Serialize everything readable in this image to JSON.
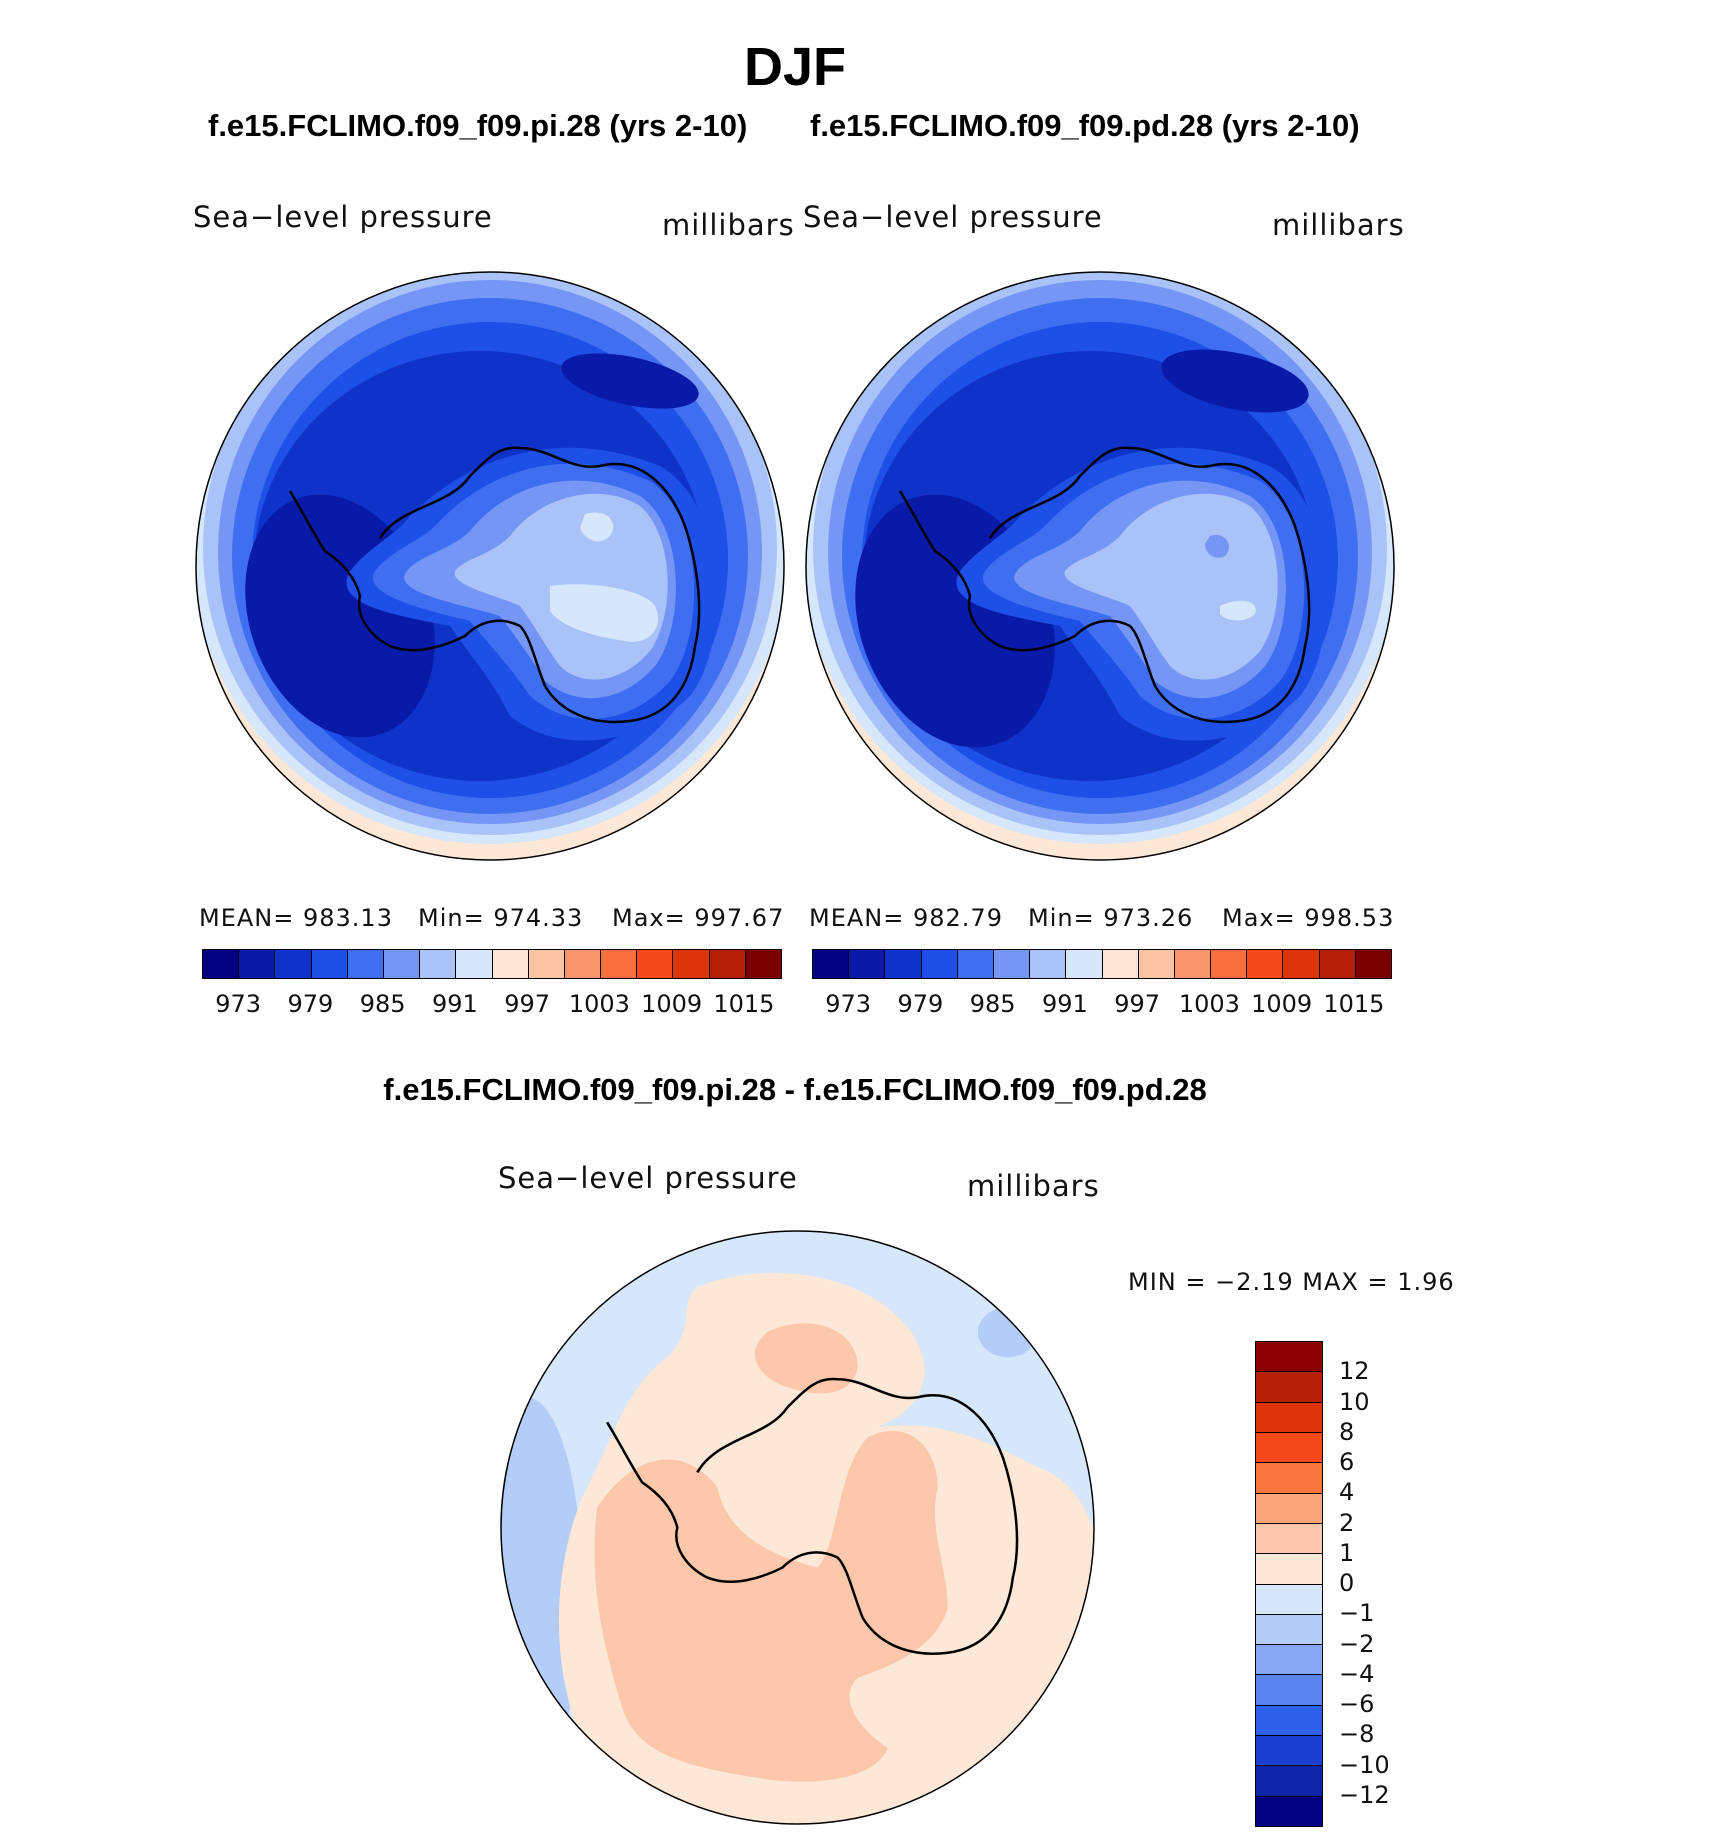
{
  "page": {
    "season": "DJF",
    "case1_title": "f.e15.FCLIMO.f09_f09.pi.28 (yrs 2-10)",
    "case2_title": "f.e15.FCLIMO.f09_f09.pd.28 (yrs 2-10)",
    "diff_title": "f.e15.FCLIMO.f09_f09.pi.28 - f.e15.FCLIMO.f09_f09.pd.28"
  },
  "panels": [
    {
      "variable": "Sea−level pressure",
      "units": "millibars",
      "stats": {
        "mean": "MEAN=  983.13",
        "min": "Min=  974.33",
        "max": "Max=  997.67"
      }
    },
    {
      "variable": "Sea−level pressure",
      "units": "millibars",
      "stats": {
        "mean": "MEAN=  982.79",
        "min": "Min=  973.26",
        "max": "Max=  998.53"
      }
    }
  ],
  "diff_panel": {
    "variable": "Sea−level pressure",
    "units": "millibars",
    "minmax": "MIN  =    −2.19  MAX  =     1.96"
  },
  "colorbar_main": {
    "colors": [
      "#000080",
      "#0a1aa8",
      "#0f32c8",
      "#1e4fe6",
      "#3f6ff0",
      "#7596f5",
      "#a9c3f8",
      "#d6e6fb",
      "#fde7d6",
      "#fcc3a5",
      "#f9956b",
      "#f86f3f",
      "#f5481b",
      "#de3409",
      "#b52006",
      "#7a0000"
    ],
    "ticks": [
      "973",
      "979",
      "985",
      "991",
      "997",
      "1003",
      "1009",
      "1015"
    ]
  },
  "colorbar_diff": {
    "colors_top_to_bottom": [
      "#8b0000",
      "#b52006",
      "#de3409",
      "#f5481b",
      "#f9773f",
      "#fba57b",
      "#fcc7aa",
      "#fde7d6",
      "#d6e6fb",
      "#b4cdf8",
      "#87a8f5",
      "#5a82ef",
      "#2e5fe8",
      "#1a3fd0",
      "#0d25a6",
      "#000080"
    ],
    "ticks": [
      "12",
      "10",
      "8",
      "6",
      "4",
      "2",
      "1",
      "0",
      "−1",
      "−2",
      "−4",
      "−6",
      "−8",
      "−10",
      "−12"
    ]
  }
}
